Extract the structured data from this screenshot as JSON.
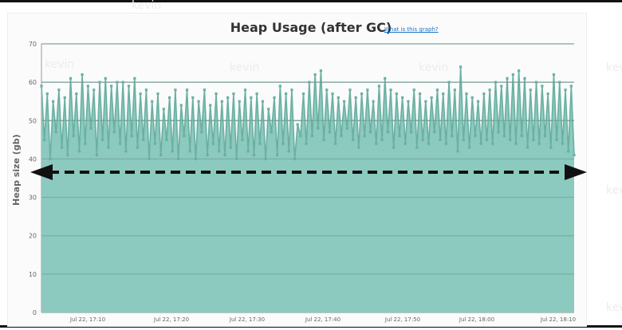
{
  "chart_data": {
    "type": "area",
    "title": "Heap Usage (after GC)",
    "help_link": "What is this graph?",
    "ylabel": "Heap size (gb)",
    "ylim": [
      0,
      70
    ],
    "yticks": [
      0,
      10,
      20,
      30,
      40,
      50,
      60,
      70
    ],
    "xticks": [
      "Jul 22, 17:10",
      "Jul 22, 17:20",
      "Jul 22, 17:30",
      "Jul 22, 17:40",
      "Jul 22, 17:50",
      "Jul 22, 18:00",
      "Jul 22, 18:10"
    ],
    "grid": true,
    "series": [
      {
        "values": [
          59,
          45,
          57,
          40,
          55,
          47,
          58,
          43,
          56,
          41,
          61,
          46,
          57,
          42,
          62,
          44,
          59,
          48,
          58,
          41,
          60,
          45,
          61,
          43,
          59,
          47,
          60,
          44,
          60,
          42,
          59,
          46,
          61,
          43,
          57,
          45,
          58,
          40,
          55,
          44,
          57,
          41,
          53,
          45,
          56,
          42,
          58,
          40,
          54,
          46,
          58,
          42,
          56,
          40,
          55,
          47,
          58,
          41,
          54,
          44,
          57,
          42,
          55,
          41,
          56,
          43,
          57,
          40,
          55,
          45,
          58,
          42,
          56,
          41,
          57,
          44,
          55,
          40,
          53,
          47,
          56,
          41,
          59,
          44,
          57,
          42,
          58,
          40,
          49,
          46,
          57,
          44,
          60,
          46,
          62,
          48,
          63,
          45,
          58,
          47,
          57,
          44,
          56,
          46,
          55,
          48,
          58,
          45,
          56,
          43,
          57,
          46,
          58,
          47,
          55,
          44,
          59,
          45,
          61,
          47,
          58,
          43,
          57,
          46,
          56,
          44,
          55,
          47,
          58,
          43,
          57,
          45,
          55,
          44,
          56,
          47,
          58,
          45,
          57,
          44,
          60,
          46,
          58,
          42,
          64,
          45,
          57,
          43,
          56,
          46,
          55,
          44,
          57,
          45,
          58,
          44,
          60,
          47,
          59,
          46,
          61,
          45,
          62,
          44,
          63,
          46,
          61,
          43,
          58,
          45,
          60,
          44,
          59,
          46,
          57,
          43,
          62,
          45,
          60,
          44,
          58,
          42,
          59,
          41
        ]
      }
    ],
    "colors": {
      "fill": "#8cc9be",
      "line": "#6ab0a2",
      "marker": "#6ab0a2",
      "grid": "#5f8f86",
      "arrow": "#111111"
    },
    "annotation": "horizontal double-headed dashed arrow at approximately 36 gb"
  }
}
